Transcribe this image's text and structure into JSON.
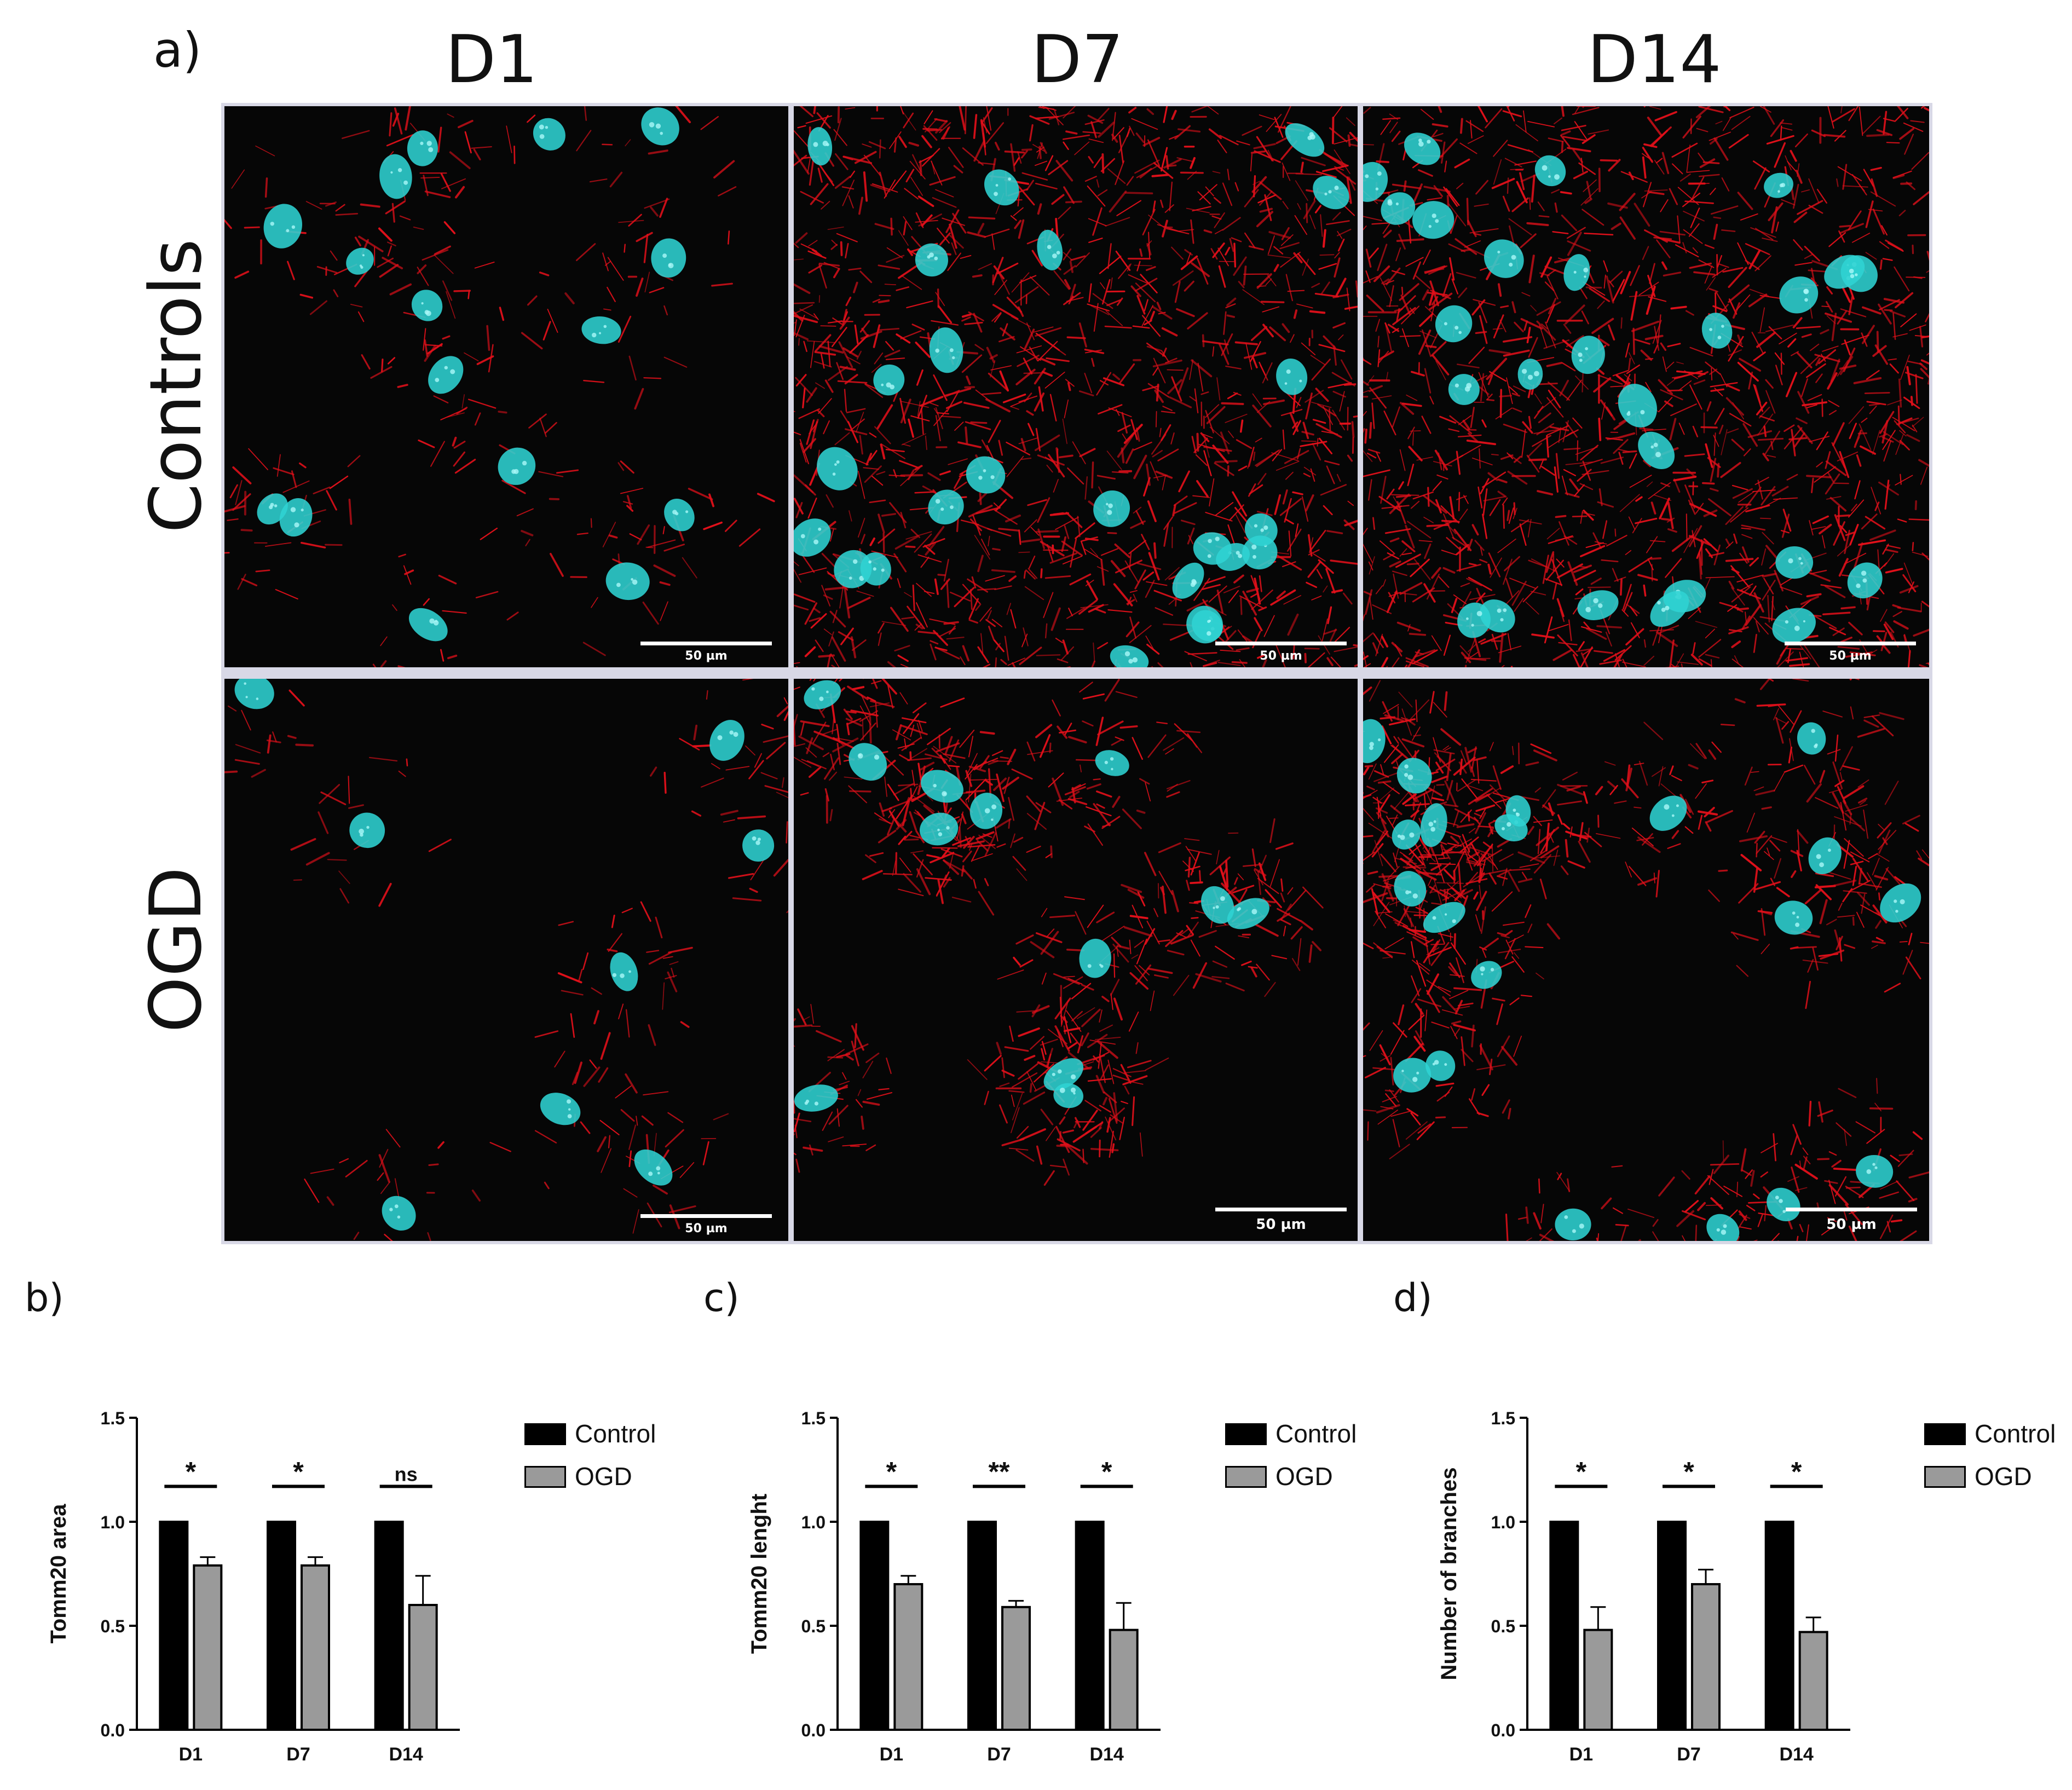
{
  "figure": {
    "panel_a": {
      "letter": "a)",
      "columns": [
        "D1",
        "D7",
        "D14"
      ],
      "rows": [
        "Controls",
        "OGD"
      ],
      "scale_bar_label": "50 µm",
      "colors": {
        "mitochondria": "#e0101a",
        "nuclei": "#2fd3d3",
        "background": "#060606",
        "frame": "#d8d8e6"
      }
    },
    "panel_letters": {
      "b": "b)",
      "c": "c)",
      "d": "d)"
    },
    "legend": {
      "control": "Control",
      "ogd": "OGD",
      "control_color": "#000000",
      "ogd_color": "#9a9a9a"
    }
  },
  "chart_data": [
    {
      "type": "bar",
      "panel": "b)",
      "categories": [
        "D1",
        "D7",
        "D14"
      ],
      "series": [
        {
          "name": "Control",
          "values": [
            1.0,
            1.0,
            1.0
          ],
          "errors": [
            0,
            0,
            0
          ]
        },
        {
          "name": "OGD",
          "values": [
            0.79,
            0.79,
            0.6
          ],
          "errors": [
            0.04,
            0.04,
            0.14
          ]
        }
      ],
      "significance": [
        "*",
        "*",
        "ns"
      ],
      "xlabel": "",
      "ylabel": "Tomm20 area",
      "ylim": [
        0.0,
        1.5
      ],
      "yticks": [
        "0.0",
        "0.5",
        "1.0",
        "1.5"
      ]
    },
    {
      "type": "bar",
      "panel": "c)",
      "categories": [
        "D1",
        "D7",
        "D14"
      ],
      "series": [
        {
          "name": "Control",
          "values": [
            1.0,
            1.0,
            1.0
          ],
          "errors": [
            0,
            0,
            0
          ]
        },
        {
          "name": "OGD",
          "values": [
            0.7,
            0.59,
            0.48
          ],
          "errors": [
            0.04,
            0.03,
            0.13
          ]
        }
      ],
      "significance": [
        "*",
        "**",
        "*"
      ],
      "xlabel": "",
      "ylabel": "Tomm20 lenght",
      "ylim": [
        0.0,
        1.5
      ],
      "yticks": [
        "0.0",
        "0.5",
        "1.0",
        "1.5"
      ]
    },
    {
      "type": "bar",
      "panel": "d)",
      "categories": [
        "D1",
        "D7",
        "D14"
      ],
      "series": [
        {
          "name": "Control",
          "values": [
            1.0,
            1.0,
            1.0
          ],
          "errors": [
            0,
            0,
            0
          ]
        },
        {
          "name": "OGD",
          "values": [
            0.48,
            0.7,
            0.47
          ],
          "errors": [
            0.11,
            0.07,
            0.07
          ]
        }
      ],
      "significance": [
        "*",
        "*",
        "*"
      ],
      "xlabel": "",
      "ylabel": "Number of branches",
      "ylim": [
        0.0,
        1.5
      ],
      "yticks": [
        "0.0",
        "0.5",
        "1.0",
        "1.5"
      ]
    }
  ]
}
